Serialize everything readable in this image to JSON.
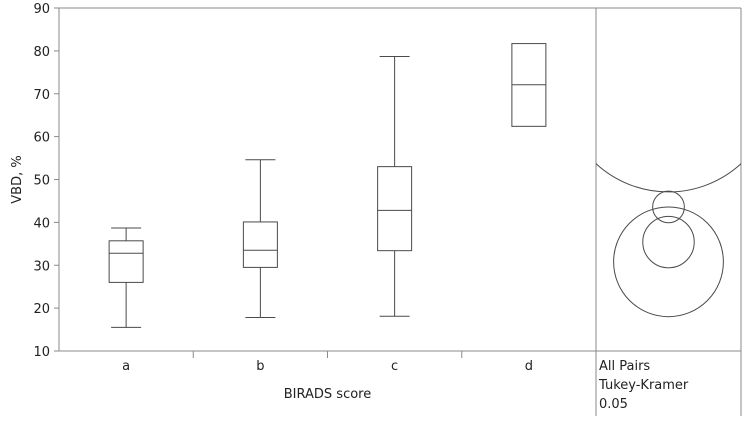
{
  "chart_data": {
    "type": "box",
    "xlabel": "BIRADS score",
    "ylabel": "VBD, %",
    "ylim": [
      10,
      90
    ],
    "yticks": [
      10,
      20,
      30,
      40,
      50,
      60,
      70,
      80,
      90
    ],
    "categories": [
      "a",
      "b",
      "c",
      "d"
    ],
    "boxes": [
      {
        "category": "a",
        "whisker_low": 15.5,
        "q1": 26,
        "median": 32.8,
        "q3": 35.7,
        "whisker_high": 38.7
      },
      {
        "category": "b",
        "whisker_low": 17.8,
        "q1": 29.5,
        "median": 33.5,
        "q3": 40.1,
        "whisker_high": 54.6
      },
      {
        "category": "c",
        "whisker_low": 18.1,
        "q1": 33.4,
        "median": 42.8,
        "q3": 53.0,
        "whisker_high": 78.7
      },
      {
        "category": "d",
        "whisker_low": 62.4,
        "q1": 62.4,
        "median": 72.1,
        "q3": 81.7,
        "whisker_high": 81.7
      }
    ],
    "comparison_circles": {
      "labels": [
        "All Pairs",
        "Tukey-Kramer",
        "0.05"
      ],
      "circles": [
        {
          "category": "a",
          "center": 30.8,
          "radius_units": 12.8
        },
        {
          "category": "b",
          "center": 35.4,
          "radius_units": 6.0
        },
        {
          "category": "c",
          "center": 43.6,
          "radius_units": 3.7
        },
        {
          "category": "d",
          "center": 72.1,
          "radius_units": 25.0
        }
      ]
    },
    "grid": false,
    "colors": {
      "stroke": "#4a4a4a",
      "frame": "#8a8a8a"
    }
  }
}
